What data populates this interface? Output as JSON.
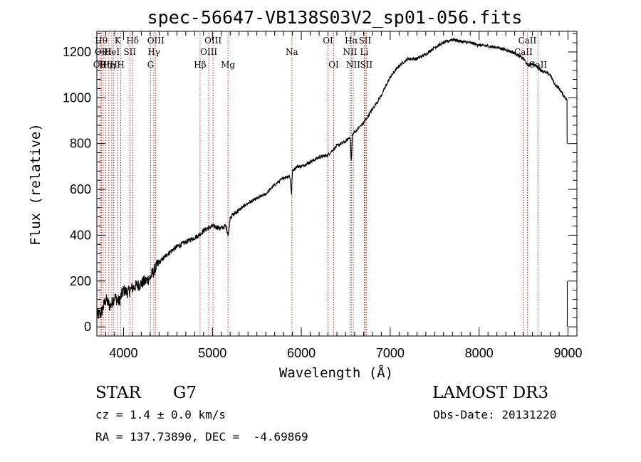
{
  "chart_data": {
    "type": "line",
    "title": "spec-56647-VB138S03V2_sp01-056.fits",
    "xlabel": "Wavelength (Å)",
    "ylabel": "Flux (relative)",
    "xlim": [
      3700,
      9100
    ],
    "ylim": [
      -40,
      1290
    ],
    "xticks": [
      4000,
      5000,
      6000,
      7000,
      8000,
      9000
    ],
    "xtick_labels": [
      "4000",
      "5000",
      "6000",
      "7000",
      "8000",
      "9000"
    ],
    "yticks": [
      0,
      200,
      400,
      600,
      800,
      1000,
      1200
    ],
    "ytick_labels": [
      "0",
      "200",
      "400",
      "600",
      "800",
      "1000",
      "1200"
    ],
    "series": [
      {
        "name": "flux",
        "x": [
          3700,
          3750,
          3800,
          3850,
          3900,
          3950,
          4000,
          4050,
          4100,
          4150,
          4200,
          4250,
          4300,
          4350,
          4400,
          4500,
          4600,
          4700,
          4800,
          4850,
          4900,
          4950,
          5000,
          5100,
          5150,
          5180,
          5200,
          5300,
          5400,
          5500,
          5600,
          5700,
          5800,
          5870,
          5890,
          5900,
          5950,
          6000,
          6100,
          6200,
          6300,
          6400,
          6500,
          6550,
          6563,
          6575,
          6600,
          6650,
          6700,
          6800,
          6900,
          7000,
          7100,
          7200,
          7300,
          7400,
          7500,
          7600,
          7700,
          7800,
          7900,
          8000,
          8100,
          8200,
          8300,
          8400,
          8500,
          8550,
          8600,
          8700,
          8800,
          8850,
          8900,
          8950,
          8990
        ],
        "y": [
          50,
          60,
          120,
          90,
          130,
          110,
          160,
          150,
          170,
          180,
          190,
          200,
          215,
          250,
          280,
          320,
          350,
          370,
          390,
          400,
          420,
          430,
          440,
          430,
          440,
          400,
          480,
          510,
          540,
          560,
          580,
          620,
          650,
          660,
          580,
          680,
          700,
          700,
          720,
          740,
          750,
          790,
          810,
          830,
          720,
          840,
          850,
          870,
          890,
          950,
          1010,
          1090,
          1140,
          1170,
          1170,
          1190,
          1220,
          1240,
          1255,
          1245,
          1240,
          1230,
          1225,
          1220,
          1210,
          1195,
          1170,
          1140,
          1150,
          1120,
          1100,
          1060,
          1040,
          1010,
          990
        ]
      }
    ],
    "lines": [
      {
        "x": 3735,
        "label": "OII",
        "row": 3
      },
      {
        "x": 3750,
        "label": "Hθ",
        "row": 1
      },
      {
        "x": 3771,
        "label": "OIII",
        "row": 2
      },
      {
        "x": 3798,
        "label": "Hη",
        "row": 3
      },
      {
        "x": 3835,
        "label": "Hη",
        "row": 3
      },
      {
        "x": 3868,
        "label": "HeI",
        "row": 2
      },
      {
        "x": 3890,
        "label": "H",
        "row": 3
      },
      {
        "x": 3934,
        "label": "K",
        "row": 1
      },
      {
        "x": 3969,
        "label": "H",
        "row": 3
      },
      {
        "x": 4071,
        "label": "SII",
        "row": 2
      },
      {
        "x": 4102,
        "label": "Hδ",
        "row": 1
      },
      {
        "x": 4304,
        "label": "G",
        "row": 3
      },
      {
        "x": 4341,
        "label": "Hγ",
        "row": 2
      },
      {
        "x": 4363,
        "label": "OIII",
        "row": 1
      },
      {
        "x": 4861,
        "label": "Hβ",
        "row": 3
      },
      {
        "x": 4959,
        "label": "OIII",
        "row": 2
      },
      {
        "x": 5007,
        "label": "OIII",
        "row": 1
      },
      {
        "x": 5175,
        "label": "Mg",
        "row": 3
      },
      {
        "x": 5894,
        "label": "Na",
        "row": 2
      },
      {
        "x": 6300,
        "label": "OI",
        "row": 1
      },
      {
        "x": 6364,
        "label": "OI",
        "row": 3
      },
      {
        "x": 6548,
        "label": "NII",
        "row": 2
      },
      {
        "x": 6563,
        "label": "Hα",
        "row": 1
      },
      {
        "x": 6584,
        "label": "NII",
        "row": 3
      },
      {
        "x": 6708,
        "label": "Li",
        "row": 2
      },
      {
        "x": 6716,
        "label": "SII",
        "row": 1
      },
      {
        "x": 6731,
        "label": "SII",
        "row": 3
      },
      {
        "x": 8498,
        "label": "CaII",
        "row": 2
      },
      {
        "x": 8542,
        "label": "CaII",
        "row": 1
      },
      {
        "x": 8662,
        "label": "CaII",
        "row": 3
      }
    ]
  },
  "info": {
    "class": "STAR",
    "subclass": "G7",
    "survey": "LAMOST DR3",
    "redshift": "cz = 1.4 ± 0.0 km/s",
    "obs_date": "Obs-Date: 20131220",
    "coords": "RA = 137.73890, DEC =  -4.69869"
  },
  "colors": {
    "line_marker": "#b22222",
    "spectrum": "#000000"
  }
}
